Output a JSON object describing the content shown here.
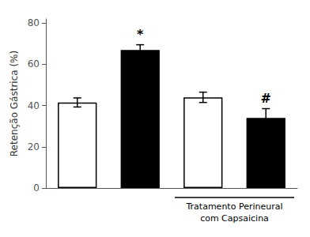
{
  "chart_data": {
    "type": "bar",
    "ylabel": "Retenção Gástrica (%)",
    "categories": [
      null,
      null,
      null,
      null
    ],
    "values": [
      41.5,
      67.0,
      44.0,
      34.0
    ],
    "errors": [
      2.2,
      2.5,
      2.5,
      4.5
    ],
    "colors": [
      "white",
      "black",
      "white",
      "black"
    ],
    "ylim": [
      0,
      82
    ],
    "yticks": [
      0,
      20,
      40,
      60,
      80
    ],
    "grid": false,
    "legend": false,
    "tick_labels": "y",
    "annotations": [
      {
        "text": "*",
        "index": 1,
        "y": 71.5
      },
      {
        "text": "#",
        "index": 3,
        "y": 40.5
      },
      {
        "text": "Tratamento Perineural\ncom Capsaicina",
        "bracket": [
          2,
          3
        ]
      }
    ]
  }
}
